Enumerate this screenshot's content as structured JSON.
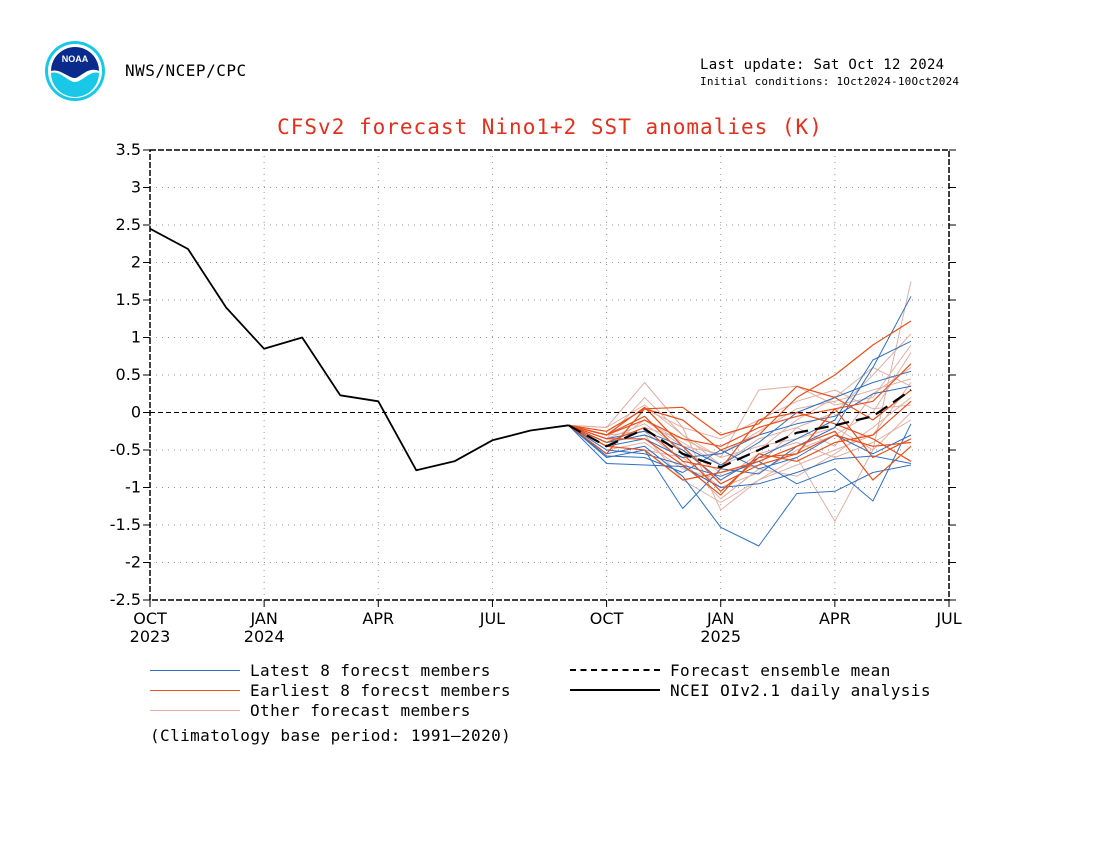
{
  "header": {
    "org": "NWS/NCEP/CPC",
    "last_update": "Last update: Sat Oct 12 2024",
    "initial_conditions": "Initial conditions: 1Oct2024-10Oct2024",
    "logo_text": "NOAA"
  },
  "legend": {
    "latest": "Latest 8 forecst members",
    "earliest": "Earliest 8 forecst members",
    "other": "Other forecast members",
    "mean": "Forecast ensemble mean",
    "obs": "NCEI OIv2.1 daily analysis",
    "climatology": "(Climatology base period: 1991–2020)"
  },
  "colors": {
    "latest": "#2f6fc0",
    "earliest": "#e8501c",
    "other": "#e0b0a4",
    "mean": "#000000",
    "obs": "#000000",
    "title": "#e0301e"
  },
  "chart_data": {
    "type": "line",
    "title": "CFSv2 forecast Nino1+2 SST anomalies (K)",
    "ylim": [
      -2.5,
      3.5
    ],
    "yticks": [
      "3.5",
      "3",
      "2.5",
      "2",
      "1.5",
      "1",
      "0.5",
      "0",
      "-0.5",
      "-1",
      "-1.5",
      "-2",
      "-2.5"
    ],
    "x_range": [
      "Oct 2023",
      "Jul 2025"
    ],
    "x_ticks": [
      {
        "label": "OCT",
        "sub": "2023"
      },
      {
        "label": "JAN",
        "sub": "2024"
      },
      {
        "label": "APR",
        "sub": ""
      },
      {
        "label": "JUL",
        "sub": ""
      },
      {
        "label": "OCT",
        "sub": ""
      },
      {
        "label": "JAN",
        "sub": "2025"
      },
      {
        "label": "APR",
        "sub": ""
      },
      {
        "label": "JUL",
        "sub": ""
      }
    ],
    "grid": true,
    "zero_line": "dashed",
    "observed": {
      "x": [
        "2023-10-01",
        "2023-11-01",
        "2023-12-01",
        "2024-01-01",
        "2024-02-01",
        "2024-03-01",
        "2024-04-01",
        "2024-05-01",
        "2024-06-01",
        "2024-07-01",
        "2024-08-01",
        "2024-09-01"
      ],
      "y": [
        2.45,
        2.18,
        1.4,
        0.85,
        1.0,
        0.23,
        0.15,
        -0.77,
        -0.65,
        -0.37,
        -0.24,
        -0.17
      ]
    },
    "forecast_x": [
      "2024-09-01",
      "2024-10-01",
      "2024-11-01",
      "2024-12-01",
      "2025-01-01",
      "2025-02-01",
      "2025-03-01",
      "2025-04-01",
      "2025-05-01",
      "2025-06-01"
    ],
    "ensemble_mean": [
      -0.17,
      -0.45,
      -0.22,
      -0.55,
      -0.73,
      -0.5,
      -0.27,
      -0.17,
      -0.05,
      0.3
    ],
    "latest_members": [
      [
        -0.17,
        -0.68,
        -0.7,
        -0.72,
        -1.0,
        -0.95,
        -0.8,
        -0.62,
        -0.58,
        -0.68
      ],
      [
        -0.17,
        -0.6,
        -0.5,
        -1.28,
        -0.75,
        -0.82,
        -0.45,
        -0.2,
        0.6,
        1.55
      ],
      [
        -0.17,
        -0.55,
        -0.45,
        -0.85,
        -1.53,
        -1.78,
        -1.08,
        -1.05,
        -0.8,
        -0.7
      ],
      [
        -0.17,
        -0.4,
        -0.3,
        -0.5,
        -0.9,
        -0.6,
        -0.35,
        -0.1,
        0.7,
        0.95
      ],
      [
        -0.17,
        -0.5,
        -0.55,
        -0.7,
        -0.85,
        -0.65,
        -0.95,
        -0.75,
        -1.18,
        -0.15
      ],
      [
        -0.17,
        -0.45,
        -0.35,
        -0.6,
        -0.55,
        -0.3,
        -0.15,
        -0.05,
        0.25,
        0.35
      ],
      [
        -0.17,
        -0.58,
        -0.6,
        -0.8,
        -0.5,
        -0.75,
        -0.6,
        -0.3,
        -0.55,
        -0.3
      ],
      [
        -0.17,
        -0.35,
        -0.25,
        -0.45,
        -0.7,
        -0.4,
        0.0,
        0.2,
        0.4,
        0.55
      ]
    ],
    "earliest_members": [
      [
        -0.17,
        -0.3,
        0.07,
        -0.45,
        -0.95,
        -0.7,
        -0.55,
        -0.3,
        -0.45,
        -0.4
      ],
      [
        -0.17,
        -0.4,
        -0.2,
        -0.65,
        -0.75,
        -0.1,
        0.0,
        -0.15,
        -0.35,
        -0.65
      ],
      [
        -0.17,
        -0.3,
        -0.05,
        -0.55,
        -1.05,
        -0.6,
        -0.55,
        0.05,
        -0.6,
        -0.35
      ],
      [
        -0.17,
        -0.55,
        0.05,
        -0.1,
        -0.5,
        -0.3,
        0.2,
        0.5,
        0.9,
        1.22
      ],
      [
        -0.17,
        -0.35,
        -0.35,
        -0.7,
        -1.1,
        -0.55,
        -0.65,
        -0.4,
        -0.3,
        0.15
      ],
      [
        -0.17,
        -0.25,
        0.05,
        0.07,
        -0.3,
        -0.15,
        0.35,
        0.2,
        -0.1,
        0.3
      ],
      [
        -0.17,
        -0.45,
        -0.5,
        -0.9,
        -0.8,
        -0.65,
        -0.45,
        -0.25,
        -0.9,
        -0.45
      ],
      [
        -0.17,
        -0.3,
        -0.1,
        -0.35,
        -0.45,
        -0.2,
        -0.05,
        0.05,
        0.15,
        0.65
      ]
    ],
    "other_members": [
      [
        -0.17,
        -0.2,
        0.4,
        -0.2,
        -1.3,
        -0.9,
        -0.6,
        -1.45,
        -0.5,
        1.75
      ],
      [
        -0.17,
        -0.35,
        0.2,
        -0.3,
        -0.6,
        0.3,
        0.35,
        0.1,
        0.2,
        0.9
      ],
      [
        -0.17,
        -0.4,
        -0.3,
        -0.9,
        -1.2,
        -0.9,
        -0.7,
        -0.5,
        -0.3,
        0.4
      ],
      [
        -0.17,
        -0.3,
        -0.1,
        -0.4,
        -0.7,
        -0.35,
        -0.2,
        0.0,
        0.5,
        1.05
      ],
      [
        -0.17,
        -0.45,
        -0.5,
        -0.6,
        -1.0,
        -0.8,
        -0.5,
        -0.3,
        0.0,
        0.8
      ],
      [
        -0.17,
        -0.25,
        0.05,
        -0.2,
        -0.35,
        -0.1,
        0.15,
        0.3,
        0.05,
        0.1
      ],
      [
        -0.17,
        -0.5,
        -0.4,
        -0.75,
        -0.9,
        -0.55,
        -0.4,
        -0.6,
        -0.4,
        -0.1
      ],
      [
        -0.17,
        -0.35,
        -0.15,
        -0.5,
        -0.8,
        -0.7,
        -0.2,
        -0.45,
        0.25,
        0.6
      ],
      [
        -0.17,
        -0.4,
        -0.2,
        -0.35,
        -0.6,
        -0.45,
        -0.35,
        -0.2,
        -0.5,
        0.0
      ],
      [
        -0.17,
        -0.3,
        -0.25,
        -0.65,
        -1.15,
        -0.75,
        -0.85,
        -0.55,
        -0.2,
        0.2
      ],
      [
        -0.17,
        -0.45,
        -0.1,
        -0.45,
        -0.55,
        -0.25,
        0.05,
        0.15,
        0.3,
        0.45
      ],
      [
        -0.17,
        -0.2,
        0.1,
        -0.3,
        -0.7,
        -0.5,
        -0.1,
        0.2,
        0.6,
        0.35
      ]
    ]
  }
}
